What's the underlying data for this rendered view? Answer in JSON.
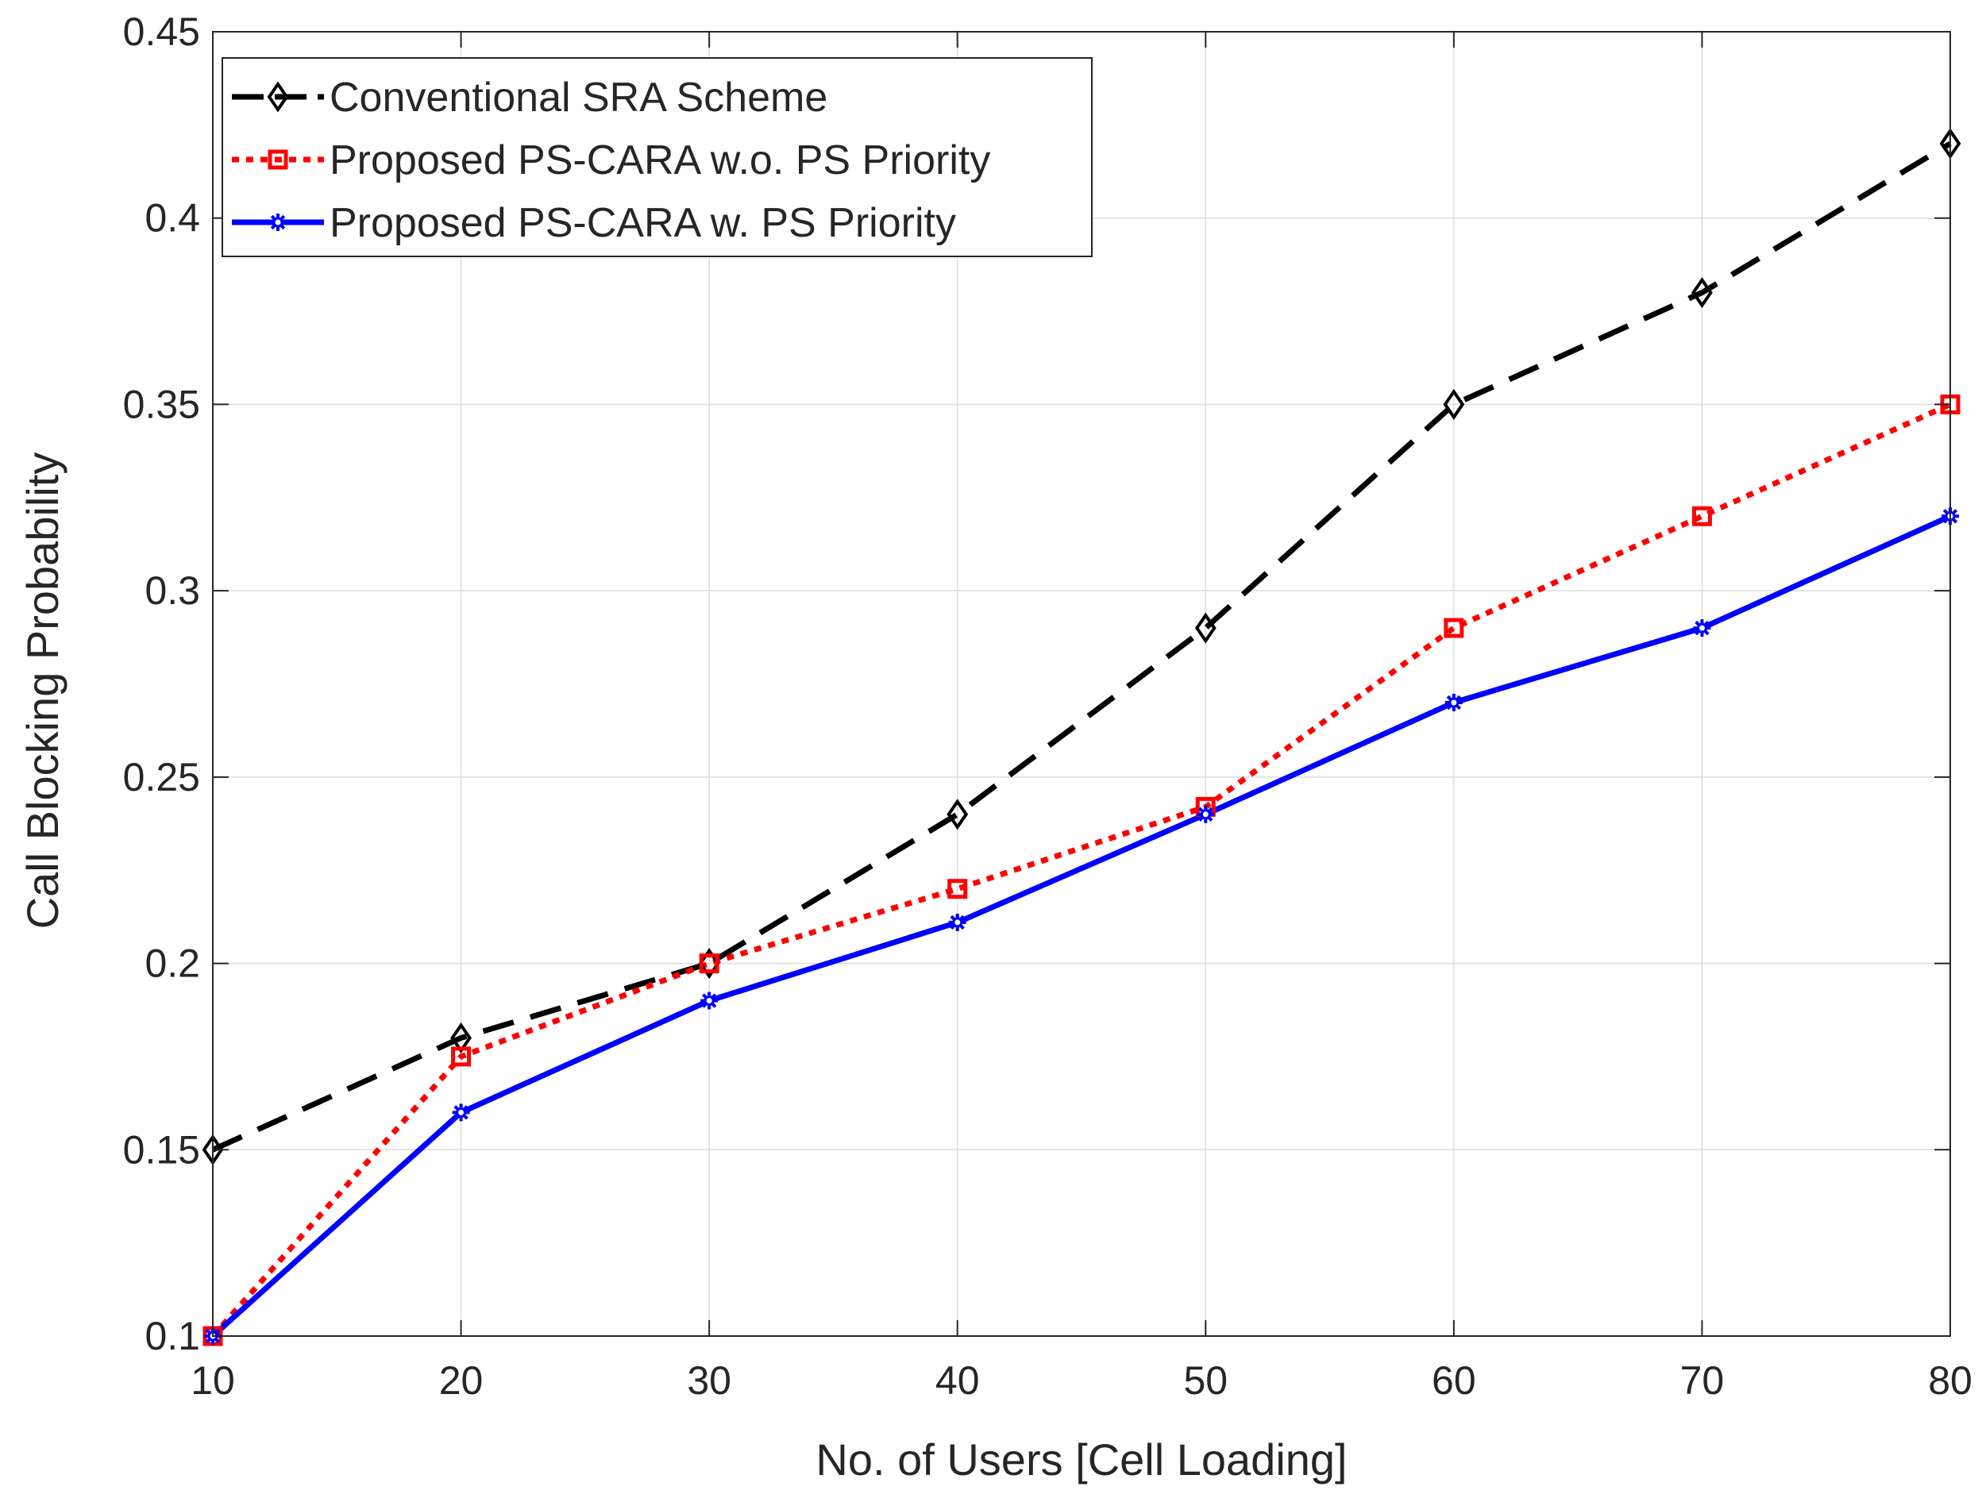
{
  "chart_data": {
    "type": "line",
    "title": "",
    "xlabel": "No. of Users [Cell Loading]",
    "ylabel": "Call Blocking Probability",
    "xlim": [
      10,
      80
    ],
    "ylim": [
      0.1,
      0.45
    ],
    "grid": true,
    "legend_position": "top-left",
    "x": [
      10,
      20,
      30,
      40,
      50,
      60,
      70,
      80
    ],
    "xticks": [
      10,
      20,
      30,
      40,
      50,
      60,
      70,
      80
    ],
    "xtick_labels": [
      "10",
      "20",
      "30",
      "40",
      "50",
      "60",
      "70",
      "80"
    ],
    "yticks": [
      0.1,
      0.15,
      0.2,
      0.25,
      0.3,
      0.35,
      0.4,
      0.45
    ],
    "ytick_labels": [
      "0.1",
      "0.15",
      "0.2",
      "0.25",
      "0.3",
      "0.35",
      "0.4",
      "0.45"
    ],
    "series": [
      {
        "name": "Conventional SRA Scheme",
        "color": "#000000",
        "line_style": "dashed",
        "marker": "diamond",
        "values": [
          0.15,
          0.18,
          0.2,
          0.24,
          0.29,
          0.35,
          0.38,
          0.42
        ]
      },
      {
        "name": "Proposed PS-CARA w.o. PS Priority",
        "color": "#ff0000",
        "line_style": "dotted",
        "marker": "square",
        "values": [
          0.1,
          0.175,
          0.2,
          0.22,
          0.242,
          0.29,
          0.32,
          0.35
        ]
      },
      {
        "name": "Proposed PS-CARA w. PS Priority",
        "color": "#0000ff",
        "line_style": "solid",
        "marker": "star",
        "values": [
          0.1,
          0.16,
          0.19,
          0.211,
          0.24,
          0.27,
          0.29,
          0.32
        ]
      }
    ]
  }
}
